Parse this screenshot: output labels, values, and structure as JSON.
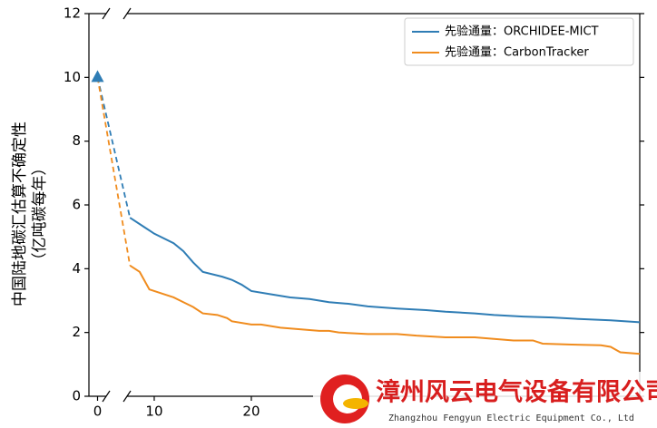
{
  "chart_data": {
    "type": "line",
    "ylabel": [
      "中国陆地碳汇估算不确定性",
      "（亿吨碳每年）"
    ],
    "ylim": [
      0,
      12
    ],
    "yticks": [
      0,
      2,
      4,
      6,
      8,
      10,
      12
    ],
    "xlim": [
      -1,
      60
    ],
    "xbreak": [
      1,
      7.2
    ],
    "xticks": [
      0,
      10,
      20
    ],
    "legend": "upper right",
    "series": [
      {
        "name": "先验通量：ORCHIDEE-MICT",
        "color": "#2f7db5",
        "x": [
          0,
          7.5,
          9,
          10,
          12,
          13,
          14,
          15,
          17,
          18,
          19,
          20,
          22,
          24,
          26,
          28,
          30,
          32,
          35,
          38,
          40,
          43,
          45,
          48,
          51,
          54,
          57,
          60
        ],
        "values": [
          10,
          5.6,
          5.3,
          5.1,
          4.8,
          4.55,
          4.2,
          3.9,
          3.75,
          3.65,
          3.5,
          3.3,
          3.2,
          3.1,
          3.05,
          2.95,
          2.9,
          2.82,
          2.75,
          2.7,
          2.65,
          2.6,
          2.55,
          2.5,
          2.47,
          2.42,
          2.38,
          2.32
        ]
      },
      {
        "name": "先验通量：CarbonTracker",
        "color": "#f08c1e",
        "x": [
          0,
          7.5,
          8.5,
          9.5,
          11,
          12,
          13,
          14,
          15,
          16.5,
          17.5,
          18,
          20,
          21,
          23,
          25,
          27,
          28,
          29,
          32,
          35,
          37,
          40,
          43,
          45,
          47,
          49,
          50,
          53,
          56,
          57,
          58,
          60
        ],
        "values": [
          10,
          4.1,
          3.9,
          3.35,
          3.2,
          3.1,
          2.95,
          2.8,
          2.6,
          2.55,
          2.45,
          2.35,
          2.25,
          2.25,
          2.15,
          2.1,
          2.05,
          2.05,
          2.0,
          1.95,
          1.95,
          1.9,
          1.85,
          1.85,
          1.8,
          1.75,
          1.75,
          1.65,
          1.62,
          1.6,
          1.55,
          1.38,
          1.33
        ]
      }
    ],
    "watermark": {
      "title": "漳州风云电气设备有限公司",
      "subtitle": "Zhangzhou Fengyun Electric Equipment Co., Ltd"
    }
  }
}
